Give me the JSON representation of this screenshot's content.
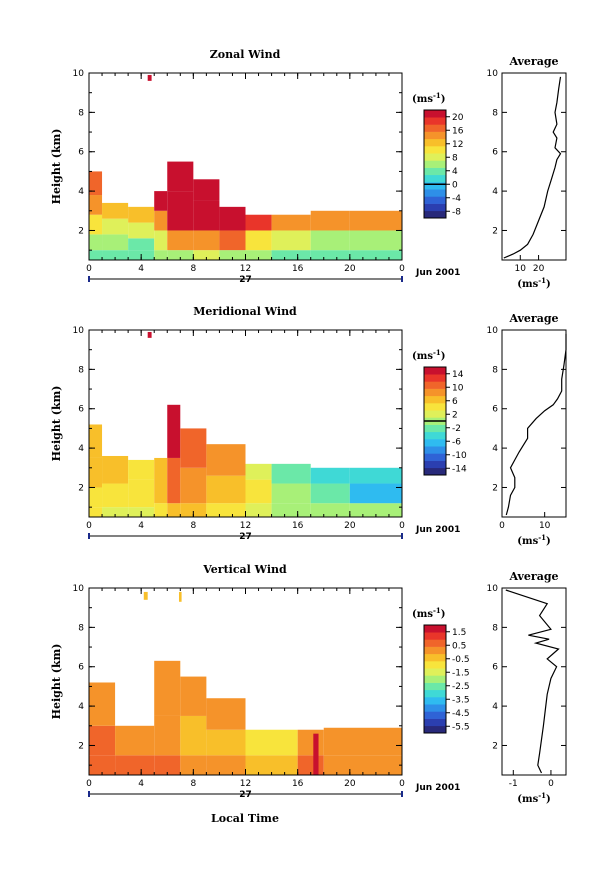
{
  "figure": {
    "date_label": "Jun 2001",
    "day_label": "27",
    "xlabel": "Local Time"
  },
  "colormap": [
    "#28297a",
    "#2b3fb0",
    "#2f63d6",
    "#2e8fe8",
    "#2fbbf0",
    "#3fd9d6",
    "#6be8a8",
    "#a8f078",
    "#dff05a",
    "#f8e43c",
    "#f8bf2a",
    "#f5932a",
    "#f0652a",
    "#e9352a",
    "#c8102e"
  ],
  "chart_data": [
    {
      "type": "heatmap",
      "title": "Zonal Wind",
      "ylabel": "Height (km)",
      "unit_label": "(ms",
      "xlim": [
        0,
        24
      ],
      "x_ticks": [
        "0",
        "4",
        "8",
        "12",
        "16",
        "20",
        "0"
      ],
      "ylim": [
        0.5,
        10
      ],
      "y_ticks": [
        "2",
        "4",
        "6",
        "8",
        "10"
      ],
      "colorbar_ticks": [
        "-8",
        "-4",
        "0",
        "4",
        "8",
        "12",
        "16",
        "20"
      ],
      "colorbar_range": [
        -10,
        22
      ],
      "colorbar_zero": 0,
      "cells": [
        {
          "t0": 0,
          "t1": 1,
          "h0": 0.5,
          "h1": 1.0,
          "v": 4
        },
        {
          "t0": 0,
          "t1": 1,
          "h0": 1.0,
          "h1": 1.8,
          "v": 6
        },
        {
          "t0": 0,
          "t1": 1,
          "h0": 1.8,
          "h1": 2.8,
          "v": 11
        },
        {
          "t0": 0,
          "t1": 1,
          "h0": 2.8,
          "h1": 3.8,
          "v": 14
        },
        {
          "t0": 0,
          "t1": 1,
          "h0": 3.8,
          "h1": 5.0,
          "v": 16
        },
        {
          "t0": 1,
          "t1": 3,
          "h0": 0.5,
          "h1": 1.0,
          "v": 4
        },
        {
          "t0": 1,
          "t1": 3,
          "h0": 1.0,
          "h1": 1.8,
          "v": 6
        },
        {
          "t0": 1,
          "t1": 3,
          "h0": 1.8,
          "h1": 2.6,
          "v": 9
        },
        {
          "t0": 1,
          "t1": 3,
          "h0": 2.6,
          "h1": 3.4,
          "v": 13
        },
        {
          "t0": 3,
          "t1": 5,
          "h0": 0.5,
          "h1": 1.0,
          "v": 3
        },
        {
          "t0": 3,
          "t1": 5,
          "h0": 1.0,
          "h1": 1.6,
          "v": 4
        },
        {
          "t0": 3,
          "t1": 5,
          "h0": 1.6,
          "h1": 2.4,
          "v": 8
        },
        {
          "t0": 3,
          "t1": 5,
          "h0": 2.4,
          "h1": 3.2,
          "v": 12
        },
        {
          "t0": 5,
          "t1": 6,
          "h0": 0.5,
          "h1": 1.0,
          "v": 5
        },
        {
          "t0": 5,
          "t1": 6,
          "h0": 1.0,
          "h1": 2.0,
          "v": 9
        },
        {
          "t0": 5,
          "t1": 6,
          "h0": 2.0,
          "h1": 3.0,
          "v": 15
        },
        {
          "t0": 5,
          "t1": 6,
          "h0": 3.0,
          "h1": 4.0,
          "v": 20
        },
        {
          "t0": 6,
          "t1": 8,
          "h0": 0.5,
          "h1": 1.0,
          "v": 7
        },
        {
          "t0": 6,
          "t1": 8,
          "h0": 1.0,
          "h1": 2.0,
          "v": 14
        },
        {
          "t0": 6,
          "t1": 8,
          "h0": 2.0,
          "h1": 4.0,
          "v": 21
        },
        {
          "t0": 6,
          "t1": 8,
          "h0": 4.0,
          "h1": 5.5,
          "v": 21
        },
        {
          "t0": 8,
          "t1": 10,
          "h0": 0.5,
          "h1": 1.0,
          "v": 8
        },
        {
          "t0": 8,
          "t1": 10,
          "h0": 1.0,
          "h1": 2.0,
          "v": 15
        },
        {
          "t0": 8,
          "t1": 10,
          "h0": 2.0,
          "h1": 3.5,
          "v": 21
        },
        {
          "t0": 8,
          "t1": 10,
          "h0": 3.5,
          "h1": 4.6,
          "v": 21
        },
        {
          "t0": 10,
          "t1": 12,
          "h0": 0.5,
          "h1": 1.0,
          "v": 7
        },
        {
          "t0": 10,
          "t1": 12,
          "h0": 1.0,
          "h1": 2.0,
          "v": 16
        },
        {
          "t0": 10,
          "t1": 12,
          "h0": 2.0,
          "h1": 3.2,
          "v": 21
        },
        {
          "t0": 12,
          "t1": 14,
          "h0": 0.5,
          "h1": 1.0,
          "v": 6
        },
        {
          "t0": 12,
          "t1": 14,
          "h0": 1.0,
          "h1": 2.0,
          "v": 10
        },
        {
          "t0": 12,
          "t1": 14,
          "h0": 2.0,
          "h1": 2.8,
          "v": 18
        },
        {
          "t0": 14,
          "t1": 17,
          "h0": 0.5,
          "h1": 1.0,
          "v": 4
        },
        {
          "t0": 14,
          "t1": 17,
          "h0": 1.0,
          "h1": 2.0,
          "v": 8
        },
        {
          "t0": 14,
          "t1": 17,
          "h0": 2.0,
          "h1": 2.8,
          "v": 15
        },
        {
          "t0": 17,
          "t1": 20,
          "h0": 0.5,
          "h1": 1.0,
          "v": 3
        },
        {
          "t0": 17,
          "t1": 20,
          "h0": 1.0,
          "h1": 2.0,
          "v": 7
        },
        {
          "t0": 17,
          "t1": 20,
          "h0": 2.0,
          "h1": 3.0,
          "v": 14
        },
        {
          "t0": 20,
          "t1": 24,
          "h0": 0.5,
          "h1": 1.0,
          "v": 3
        },
        {
          "t0": 20,
          "t1": 24,
          "h0": 1.0,
          "h1": 2.0,
          "v": 6
        },
        {
          "t0": 20,
          "t1": 24,
          "h0": 2.0,
          "h1": 3.0,
          "v": 14
        },
        {
          "t0": 4.5,
          "t1": 4.8,
          "h0": 9.6,
          "h1": 9.9,
          "v": 21
        }
      ],
      "avg": {
        "xlim": [
          0,
          35
        ],
        "x_ticks": [
          "10",
          "20"
        ],
        "ylim": [
          0.5,
          10
        ],
        "y_ticks": [
          "2",
          "4",
          "6",
          "8",
          "10"
        ],
        "profile": [
          [
            1,
            0.6
          ],
          [
            6,
            0.8
          ],
          [
            10,
            1.0
          ],
          [
            14,
            1.3
          ],
          [
            17,
            1.8
          ],
          [
            20,
            2.5
          ],
          [
            23,
            3.2
          ],
          [
            25,
            4.0
          ],
          [
            27,
            4.6
          ],
          [
            29,
            5.2
          ],
          [
            30,
            5.6
          ],
          [
            32,
            5.9
          ],
          [
            29,
            6.2
          ],
          [
            30,
            6.7
          ],
          [
            28,
            7.0
          ],
          [
            30,
            7.4
          ],
          [
            29,
            8.0
          ],
          [
            30,
            8.5
          ],
          [
            31,
            9.2
          ],
          [
            32,
            9.8
          ]
        ]
      }
    },
    {
      "type": "heatmap",
      "title": "Meridional Wind",
      "ylabel": "Height (km)",
      "unit_label": "(ms",
      "xlim": [
        0,
        24
      ],
      "x_ticks": [
        "0",
        "4",
        "8",
        "12",
        "16",
        "20",
        "0"
      ],
      "ylim": [
        0.5,
        10
      ],
      "y_ticks": [
        "2",
        "4",
        "6",
        "8",
        "10"
      ],
      "colorbar_ticks": [
        "-14",
        "-10",
        "-6",
        "-2",
        "2",
        "6",
        "10",
        "14"
      ],
      "colorbar_range": [
        -16,
        16
      ],
      "colorbar_zero": 0,
      "cells": [
        {
          "t0": 0,
          "t1": 1,
          "h0": 0.5,
          "h1": 1.0,
          "v": 4
        },
        {
          "t0": 0,
          "t1": 1,
          "h0": 1.0,
          "h1": 2.0,
          "v": 5
        },
        {
          "t0": 0,
          "t1": 1,
          "h0": 2.0,
          "h1": 3.5,
          "v": 6
        },
        {
          "t0": 0,
          "t1": 1,
          "h0": 3.5,
          "h1": 5.2,
          "v": 7
        },
        {
          "t0": 1,
          "t1": 3,
          "h0": 0.5,
          "h1": 1.0,
          "v": 3
        },
        {
          "t0": 1,
          "t1": 3,
          "h0": 1.0,
          "h1": 2.2,
          "v": 5
        },
        {
          "t0": 1,
          "t1": 3,
          "h0": 2.2,
          "h1": 3.6,
          "v": 6
        },
        {
          "t0": 3,
          "t1": 5,
          "h0": 0.5,
          "h1": 1.0,
          "v": 3
        },
        {
          "t0": 3,
          "t1": 5,
          "h0": 1.0,
          "h1": 2.4,
          "v": 4
        },
        {
          "t0": 3,
          "t1": 5,
          "h0": 2.4,
          "h1": 3.4,
          "v": 5
        },
        {
          "t0": 5,
          "t1": 6,
          "h0": 0.5,
          "h1": 1.2,
          "v": 5
        },
        {
          "t0": 5,
          "t1": 6,
          "h0": 1.2,
          "h1": 3.5,
          "v": 7
        },
        {
          "t0": 6,
          "t1": 7,
          "h0": 0.5,
          "h1": 1.2,
          "v": 7
        },
        {
          "t0": 6,
          "t1": 7,
          "h0": 1.2,
          "h1": 3.5,
          "v": 10
        },
        {
          "t0": 6,
          "t1": 7,
          "h0": 3.5,
          "h1": 6.2,
          "v": 14
        },
        {
          "t0": 7,
          "t1": 9,
          "h0": 0.5,
          "h1": 1.2,
          "v": 6
        },
        {
          "t0": 7,
          "t1": 9,
          "h0": 1.2,
          "h1": 3.0,
          "v": 8
        },
        {
          "t0": 7,
          "t1": 9,
          "h0": 3.0,
          "h1": 5.0,
          "v": 10
        },
        {
          "t0": 9,
          "t1": 12,
          "h0": 0.5,
          "h1": 1.2,
          "v": 5
        },
        {
          "t0": 9,
          "t1": 12,
          "h0": 1.2,
          "h1": 2.6,
          "v": 7
        },
        {
          "t0": 9,
          "t1": 12,
          "h0": 2.6,
          "h1": 4.2,
          "v": 9
        },
        {
          "t0": 12,
          "t1": 14,
          "h0": 0.5,
          "h1": 1.2,
          "v": 3
        },
        {
          "t0": 12,
          "t1": 14,
          "h0": 1.2,
          "h1": 2.4,
          "v": 4
        },
        {
          "t0": 12,
          "t1": 14,
          "h0": 2.4,
          "h1": 3.2,
          "v": 2
        },
        {
          "t0": 14,
          "t1": 17,
          "h0": 0.5,
          "h1": 1.2,
          "v": 1
        },
        {
          "t0": 14,
          "t1": 17,
          "h0": 1.2,
          "h1": 2.2,
          "v": -1
        },
        {
          "t0": 14,
          "t1": 17,
          "h0": 2.2,
          "h1": 3.2,
          "v": -3
        },
        {
          "t0": 17,
          "t1": 20,
          "h0": 0.5,
          "h1": 1.2,
          "v": 1
        },
        {
          "t0": 17,
          "t1": 20,
          "h0": 1.2,
          "h1": 2.2,
          "v": -3
        },
        {
          "t0": 17,
          "t1": 20,
          "h0": 2.2,
          "h1": 3.0,
          "v": -5
        },
        {
          "t0": 20,
          "t1": 24,
          "h0": 0.5,
          "h1": 1.2,
          "v": -1
        },
        {
          "t0": 20,
          "t1": 24,
          "h0": 1.2,
          "h1": 2.2,
          "v": -6
        },
        {
          "t0": 20,
          "t1": 24,
          "h0": 2.2,
          "h1": 3.0,
          "v": -4
        },
        {
          "t0": 4.5,
          "t1": 4.8,
          "h0": 9.6,
          "h1": 9.9,
          "v": 14
        }
      ],
      "avg": {
        "xlim": [
          0,
          15
        ],
        "x_ticks": [
          "0",
          "10"
        ],
        "ylim": [
          0.5,
          10
        ],
        "y_ticks": [
          "2",
          "4",
          "6",
          "8",
          "10"
        ],
        "profile": [
          [
            1,
            0.6
          ],
          [
            1.5,
            1.0
          ],
          [
            2,
            1.6
          ],
          [
            3,
            2.0
          ],
          [
            3,
            2.5
          ],
          [
            2,
            3.0
          ],
          [
            3,
            3.4
          ],
          [
            4,
            3.8
          ],
          [
            6,
            4.5
          ],
          [
            6,
            5.0
          ],
          [
            8,
            5.5
          ],
          [
            10,
            5.9
          ],
          [
            12,
            6.2
          ],
          [
            13,
            6.5
          ],
          [
            14,
            6.9
          ],
          [
            14,
            7.5
          ],
          [
            14.5,
            8.2
          ],
          [
            15,
            9.0
          ],
          [
            15,
            9.8
          ]
        ]
      }
    },
    {
      "type": "heatmap",
      "title": "Vertical Wind",
      "ylabel": "Height (km)",
      "unit_label": "(ms",
      "xlim": [
        0,
        24
      ],
      "x_ticks": [
        "0",
        "4",
        "8",
        "12",
        "16",
        "20",
        "0"
      ],
      "ylim": [
        0.5,
        10
      ],
      "y_ticks": [
        "2",
        "4",
        "6",
        "8",
        "10"
      ],
      "colorbar_ticks": [
        "-5.5",
        "-4.5",
        "-3.5",
        "-2.5",
        "-1.5",
        "-0.5",
        "0.5",
        "1.5"
      ],
      "colorbar_range": [
        -6,
        2
      ],
      "colorbar_zero": null,
      "cells": [
        {
          "t0": 0,
          "t1": 2,
          "h0": 0.5,
          "h1": 1.5,
          "v": 0.8
        },
        {
          "t0": 0,
          "t1": 2,
          "h0": 1.5,
          "h1": 3.0,
          "v": 0.5
        },
        {
          "t0": 0,
          "t1": 2,
          "h0": 3.0,
          "h1": 5.2,
          "v": 0.3
        },
        {
          "t0": 2,
          "t1": 5,
          "h0": 0.5,
          "h1": 1.5,
          "v": 0.6
        },
        {
          "t0": 2,
          "t1": 5,
          "h0": 1.5,
          "h1": 3.0,
          "v": 0.3
        },
        {
          "t0": 5,
          "t1": 7,
          "h0": 0.5,
          "h1": 1.5,
          "v": 0.5
        },
        {
          "t0": 5,
          "t1": 7,
          "h0": 1.5,
          "h1": 3.5,
          "v": 0.1
        },
        {
          "t0": 5,
          "t1": 7,
          "h0": 3.5,
          "h1": 6.3,
          "v": 0.3
        },
        {
          "t0": 7,
          "t1": 9,
          "h0": 0.5,
          "h1": 1.5,
          "v": 0.2
        },
        {
          "t0": 7,
          "t1": 9,
          "h0": 1.5,
          "h1": 3.5,
          "v": -0.4
        },
        {
          "t0": 7,
          "t1": 9,
          "h0": 3.5,
          "h1": 5.5,
          "v": 0.0
        },
        {
          "t0": 9,
          "t1": 12,
          "h0": 0.5,
          "h1": 1.5,
          "v": 0.1
        },
        {
          "t0": 9,
          "t1": 12,
          "h0": 1.5,
          "h1": 2.8,
          "v": -0.6
        },
        {
          "t0": 9,
          "t1": 12,
          "h0": 2.8,
          "h1": 4.4,
          "v": 0.2
        },
        {
          "t0": 12,
          "t1": 16,
          "h0": 0.5,
          "h1": 1.5,
          "v": -0.3
        },
        {
          "t0": 12,
          "t1": 16,
          "h0": 1.5,
          "h1": 2.8,
          "v": -0.8
        },
        {
          "t0": 16,
          "t1": 18,
          "h0": 0.5,
          "h1": 1.5,
          "v": 0.4
        },
        {
          "t0": 16,
          "t1": 18,
          "h0": 1.5,
          "h1": 2.8,
          "v": 0.0
        },
        {
          "t0": 17.2,
          "t1": 17.6,
          "h0": 0.5,
          "h1": 2.6,
          "v": 1.6
        },
        {
          "t0": 18,
          "t1": 24,
          "h0": 0.5,
          "h1": 1.5,
          "v": 0.3
        },
        {
          "t0": 18,
          "t1": 24,
          "h0": 1.5,
          "h1": 2.9,
          "v": 0.1
        },
        {
          "t0": 4.2,
          "t1": 4.5,
          "h0": 9.4,
          "h1": 9.8,
          "v": -0.5
        },
        {
          "t0": 6.9,
          "t1": 7.1,
          "h0": 9.3,
          "h1": 9.8,
          "v": -0.5
        }
      ],
      "avg": {
        "xlim": [
          -1.3,
          0.4
        ],
        "x_ticks": [
          "-1",
          "0"
        ],
        "ylim": [
          0.5,
          10
        ],
        "y_ticks": [
          "2",
          "4",
          "6",
          "8",
          "10"
        ],
        "profile": [
          [
            -0.25,
            0.6
          ],
          [
            -0.35,
            1.0
          ],
          [
            -0.3,
            1.6
          ],
          [
            -0.25,
            2.3
          ],
          [
            -0.2,
            3.0
          ],
          [
            -0.15,
            3.8
          ],
          [
            -0.1,
            4.6
          ],
          [
            0.0,
            5.4
          ],
          [
            0.15,
            6.0
          ],
          [
            -0.1,
            6.4
          ],
          [
            0.2,
            6.9
          ],
          [
            -0.4,
            7.2
          ],
          [
            -0.05,
            7.4
          ],
          [
            -0.6,
            7.6
          ],
          [
            0.0,
            7.9
          ],
          [
            -0.3,
            8.6
          ],
          [
            -0.1,
            9.2
          ],
          [
            -1.2,
            9.9
          ]
        ]
      }
    }
  ]
}
